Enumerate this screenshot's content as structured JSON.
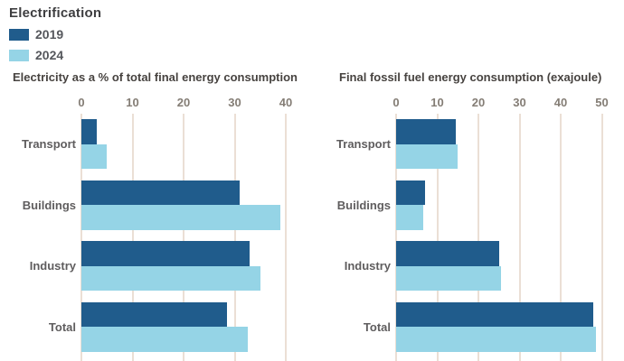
{
  "legend": {
    "title": "Electrification",
    "items": [
      {
        "label": "2019",
        "color": "#205C8C"
      },
      {
        "label": "2024",
        "color": "#95D4E6"
      }
    ]
  },
  "style": {
    "gridline_color": "#EBDFD5",
    "background": "#FFFFFF"
  },
  "chart_data": [
    {
      "type": "bar",
      "orientation": "horizontal",
      "title": "Electricity as a % of total final energy consumption",
      "categories": [
        "Transport",
        "Buildings",
        "Industry",
        "Total"
      ],
      "series": [
        {
          "name": "2019",
          "color": "#205C8C",
          "values": [
            3,
            31,
            33,
            28.5
          ]
        },
        {
          "name": "2024",
          "color": "#95D4E6",
          "values": [
            5,
            39,
            35,
            32.5
          ]
        }
      ],
      "xlim": [
        0,
        40
      ],
      "xticks": [
        0,
        10,
        20,
        30,
        40
      ],
      "grid": true,
      "legend_position": "top-left"
    },
    {
      "type": "bar",
      "orientation": "horizontal",
      "title": "Final fossil fuel energy consumption (exajoule)",
      "categories": [
        "Transport",
        "Buildings",
        "Industry",
        "Total"
      ],
      "series": [
        {
          "name": "2019",
          "color": "#205C8C",
          "values": [
            14.5,
            7,
            25,
            48
          ]
        },
        {
          "name": "2024",
          "color": "#95D4E6",
          "values": [
            15,
            6.7,
            25.5,
            48.5
          ]
        }
      ],
      "xlim": [
        0,
        50
      ],
      "xticks": [
        0,
        10,
        20,
        30,
        40,
        50
      ],
      "grid": true,
      "legend_position": "top-left"
    }
  ]
}
